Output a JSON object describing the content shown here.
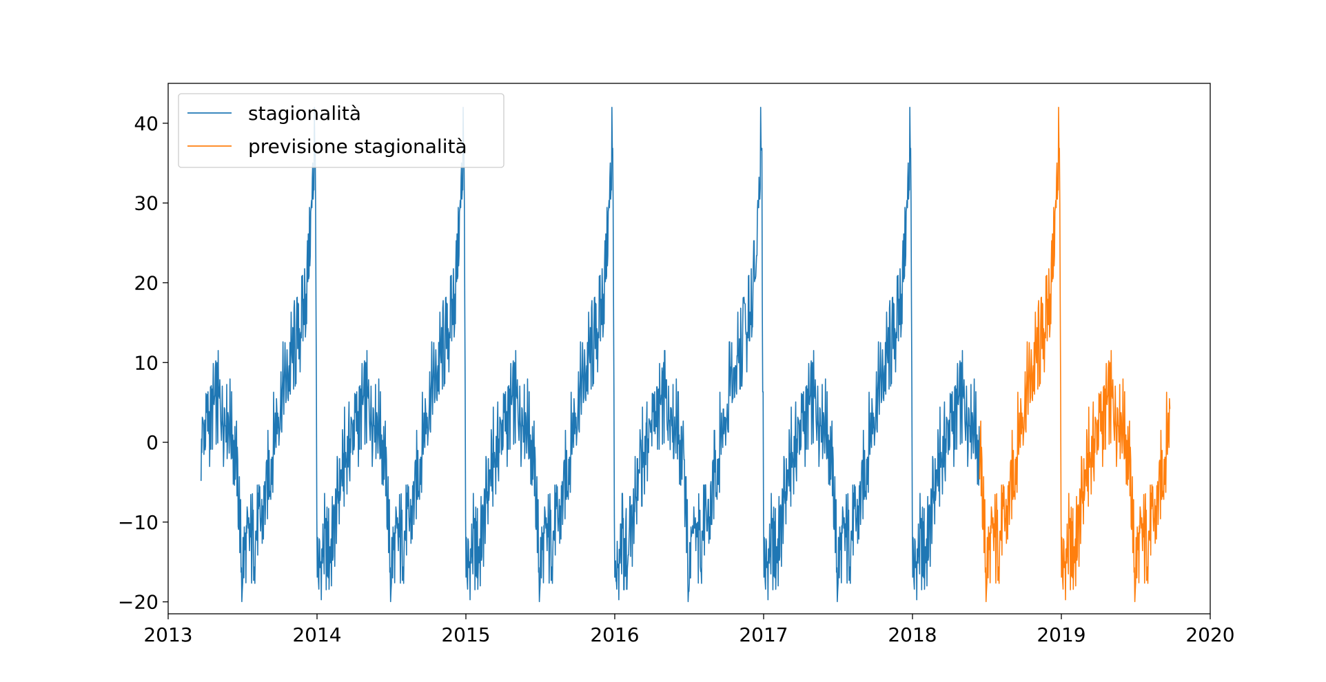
{
  "chart_data": {
    "type": "line",
    "title": "",
    "xlabel": "",
    "ylabel": "",
    "xlim": [
      2013.0,
      2020.0
    ],
    "ylim": [
      -21.5,
      45.0
    ],
    "grid": false,
    "legend_position": "top-left",
    "x_ticks": [
      "2013",
      "2014",
      "2015",
      "2016",
      "2017",
      "2018",
      "2019",
      "2020"
    ],
    "y_ticks": [
      "−20",
      "−10",
      "0",
      "10",
      "20",
      "30",
      "40"
    ],
    "y_tick_values": [
      -20,
      -10,
      0,
      10,
      20,
      30,
      40
    ],
    "seasonal_profile": {
      "doy": [
        0,
        3,
        6,
        10,
        15,
        22,
        30,
        40,
        50,
        60,
        70,
        80,
        90,
        100,
        110,
        120,
        130,
        140,
        150,
        160,
        170,
        175,
        180,
        185,
        190,
        200,
        210,
        220,
        230,
        240,
        250,
        260,
        270,
        280,
        290,
        300,
        310,
        320,
        330,
        340,
        345,
        350,
        355,
        358,
        360,
        362,
        365
      ],
      "value": [
        -13,
        -17,
        -16,
        -15,
        -13,
        -13,
        -14,
        -11,
        -7,
        -4,
        -2,
        0,
        2,
        3,
        4,
        5,
        4,
        4,
        3,
        0,
        -5,
        -9,
        -17,
        -14,
        -13,
        -12,
        -12,
        -11,
        -9,
        -6,
        -3,
        1,
        4,
        6,
        8,
        10,
        12,
        14,
        16,
        20,
        24,
        28,
        32,
        37,
        40,
        15,
        -13
      ],
      "spike_amplitude": 6,
      "peak_value": 42,
      "trough_value": -18.7
    },
    "series": [
      {
        "name": "stagionalità",
        "color": "#1f77b4",
        "x_start": 2013.22,
        "x_end": 2018.45
      },
      {
        "name": "previsione stagionalità",
        "color": "#ff7f0e",
        "x_start": 2018.45,
        "x_end": 2019.73
      }
    ]
  }
}
